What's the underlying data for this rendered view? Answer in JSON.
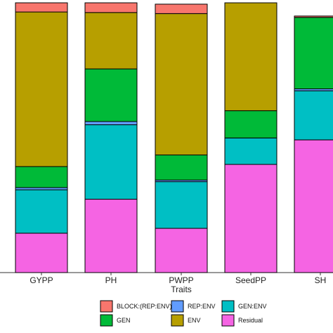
{
  "chart_data": {
    "type": "bar",
    "stacked": true,
    "xlabel": "Traits",
    "ylabel": "",
    "ylim": [
      0,
      1
    ],
    "grid": false,
    "legend_position": "bottom",
    "categories": [
      "GYPP",
      "PH",
      "PWPP",
      "SeedPP",
      "SH"
    ],
    "series": [
      {
        "name": "Residual",
        "color": "#F564E3",
        "values": [
          0.146,
          0.272,
          0.164,
          0.401,
          0.492
        ]
      },
      {
        "name": "GEN:ENV",
        "color": "#00BFC4",
        "values": [
          0.161,
          0.276,
          0.173,
          0.098,
          0.182
        ]
      },
      {
        "name": "REP:ENV",
        "color": "#619CFF",
        "values": [
          0.008,
          0.012,
          0.006,
          0.0,
          0.007
        ]
      },
      {
        "name": "GEN",
        "color": "#00BA38",
        "values": [
          0.078,
          0.195,
          0.093,
          0.101,
          0.265
        ]
      },
      {
        "name": "ENV",
        "color": "#B79F00",
        "values": [
          0.573,
          0.209,
          0.524,
          0.4,
          0.0
        ]
      },
      {
        "name": "BLOCK:(REP:ENV)",
        "color": "#F8766D",
        "values": [
          0.034,
          0.036,
          0.035,
          0.0,
          0.005
        ]
      }
    ],
    "legend_order": [
      "BLOCK:(REP:ENV)",
      "GEN",
      "REP:ENV",
      "ENV",
      "GEN:ENV",
      "Residual"
    ]
  }
}
